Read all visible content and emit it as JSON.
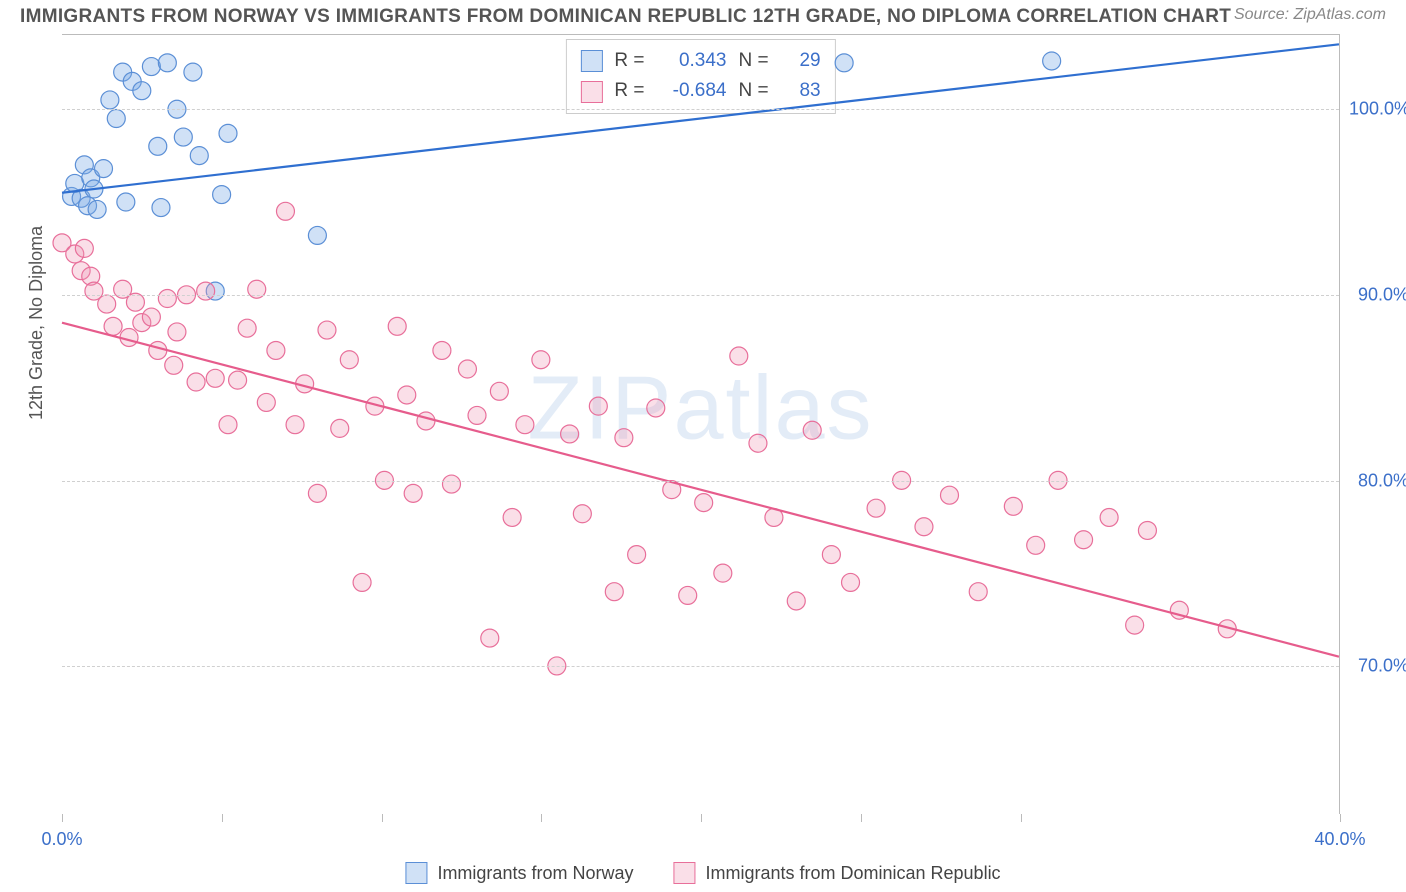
{
  "title": "IMMIGRANTS FROM NORWAY VS IMMIGRANTS FROM DOMINICAN REPUBLIC 12TH GRADE, NO DIPLOMA CORRELATION CHART",
  "source_label": "Source: ZipAtlas.com",
  "watermark": "ZIPatlas",
  "y_axis_title": "12th Grade, No Diploma",
  "chart": {
    "type": "scatter",
    "background_color": "#ffffff",
    "grid_color": "#d0d0d0",
    "border_color": "#bbbbbb",
    "xlim": [
      0,
      40
    ],
    "ylim": [
      62,
      104
    ],
    "x_ticks": [
      0,
      5,
      10,
      15,
      20,
      25,
      30,
      40
    ],
    "x_tick_labels": {
      "0": "0.0%",
      "40": "40.0%"
    },
    "y_ticks": [
      70,
      80,
      90,
      100
    ],
    "y_tick_labels": {
      "70": "70.0%",
      "80": "80.0%",
      "90": "90.0%",
      "100": "100.0%"
    },
    "tick_label_color": "#3b6fc9",
    "tick_label_fontsize": 18,
    "marker_radius": 9,
    "marker_stroke_width": 1.2,
    "line_width": 2.2,
    "series": [
      {
        "key": "norway",
        "label": "Immigrants from Norway",
        "color_fill": "rgba(120,170,230,0.35)",
        "color_stroke": "#5b8fd6",
        "line_color": "#2f6fd0",
        "R": "0.343",
        "N": "29",
        "trend": {
          "x1": 0,
          "y1": 95.5,
          "x2": 40,
          "y2": 103.5
        },
        "points": [
          [
            0.3,
            95.3
          ],
          [
            0.4,
            96.0
          ],
          [
            0.6,
            95.2
          ],
          [
            0.7,
            97.0
          ],
          [
            0.8,
            94.8
          ],
          [
            0.9,
            96.3
          ],
          [
            1.0,
            95.7
          ],
          [
            1.1,
            94.6
          ],
          [
            1.3,
            96.8
          ],
          [
            1.5,
            100.5
          ],
          [
            1.7,
            99.5
          ],
          [
            1.9,
            102.0
          ],
          [
            2.0,
            95.0
          ],
          [
            2.2,
            101.5
          ],
          [
            2.5,
            101.0
          ],
          [
            2.8,
            102.3
          ],
          [
            3.0,
            98.0
          ],
          [
            3.3,
            102.5
          ],
          [
            3.1,
            94.7
          ],
          [
            3.6,
            100.0
          ],
          [
            3.8,
            98.5
          ],
          [
            4.1,
            102.0
          ],
          [
            4.3,
            97.5
          ],
          [
            4.8,
            90.2
          ],
          [
            5.0,
            95.4
          ],
          [
            5.2,
            98.7
          ],
          [
            8.0,
            93.2
          ],
          [
            24.5,
            102.5
          ],
          [
            31.0,
            102.6
          ]
        ]
      },
      {
        "key": "dominican",
        "label": "Immigrants from Dominican Republic",
        "color_fill": "rgba(240,150,180,0.30)",
        "color_stroke": "#e86f9a",
        "line_color": "#e65c8c",
        "R": "-0.684",
        "N": "83",
        "trend": {
          "x1": 0,
          "y1": 88.5,
          "x2": 40,
          "y2": 70.5
        },
        "points": [
          [
            0.0,
            92.8
          ],
          [
            0.4,
            92.2
          ],
          [
            0.6,
            91.3
          ],
          [
            0.7,
            92.5
          ],
          [
            0.9,
            91.0
          ],
          [
            1.0,
            90.2
          ],
          [
            1.4,
            89.5
          ],
          [
            1.6,
            88.3
          ],
          [
            1.9,
            90.3
          ],
          [
            2.1,
            87.7
          ],
          [
            2.3,
            89.6
          ],
          [
            2.5,
            88.5
          ],
          [
            2.8,
            88.8
          ],
          [
            3.0,
            87.0
          ],
          [
            3.3,
            89.8
          ],
          [
            3.5,
            86.2
          ],
          [
            3.6,
            88.0
          ],
          [
            3.9,
            90.0
          ],
          [
            4.2,
            85.3
          ],
          [
            4.5,
            90.2
          ],
          [
            4.8,
            85.5
          ],
          [
            5.2,
            83.0
          ],
          [
            5.5,
            85.4
          ],
          [
            5.8,
            88.2
          ],
          [
            6.1,
            90.3
          ],
          [
            6.4,
            84.2
          ],
          [
            6.7,
            87.0
          ],
          [
            7.0,
            94.5
          ],
          [
            7.3,
            83.0
          ],
          [
            7.6,
            85.2
          ],
          [
            8.0,
            79.3
          ],
          [
            8.3,
            88.1
          ],
          [
            8.7,
            82.8
          ],
          [
            9.0,
            86.5
          ],
          [
            9.4,
            74.5
          ],
          [
            9.8,
            84.0
          ],
          [
            10.1,
            80.0
          ],
          [
            10.5,
            88.3
          ],
          [
            10.8,
            84.6
          ],
          [
            11.0,
            79.3
          ],
          [
            11.4,
            83.2
          ],
          [
            11.9,
            87.0
          ],
          [
            12.2,
            79.8
          ],
          [
            12.7,
            86.0
          ],
          [
            13.0,
            83.5
          ],
          [
            13.4,
            71.5
          ],
          [
            13.7,
            84.8
          ],
          [
            14.1,
            78.0
          ],
          [
            14.5,
            83.0
          ],
          [
            15.0,
            86.5
          ],
          [
            15.5,
            70.0
          ],
          [
            15.9,
            82.5
          ],
          [
            16.3,
            78.2
          ],
          [
            16.8,
            84.0
          ],
          [
            17.3,
            74.0
          ],
          [
            17.6,
            82.3
          ],
          [
            18.0,
            76.0
          ],
          [
            18.6,
            83.9
          ],
          [
            19.1,
            79.5
          ],
          [
            19.6,
            73.8
          ],
          [
            20.1,
            78.8
          ],
          [
            20.7,
            75.0
          ],
          [
            21.2,
            86.7
          ],
          [
            21.8,
            82.0
          ],
          [
            22.3,
            78.0
          ],
          [
            23.0,
            73.5
          ],
          [
            23.5,
            82.7
          ],
          [
            24.1,
            76.0
          ],
          [
            24.7,
            74.5
          ],
          [
            25.5,
            78.5
          ],
          [
            26.3,
            80.0
          ],
          [
            27.0,
            77.5
          ],
          [
            27.8,
            79.2
          ],
          [
            28.7,
            74.0
          ],
          [
            29.8,
            78.6
          ],
          [
            30.5,
            76.5
          ],
          [
            31.2,
            80.0
          ],
          [
            32.0,
            76.8
          ],
          [
            32.8,
            78.0
          ],
          [
            33.6,
            72.2
          ],
          [
            35.0,
            73.0
          ],
          [
            34.0,
            77.3
          ],
          [
            36.5,
            72.0
          ]
        ]
      }
    ]
  },
  "legend_box": {
    "r_label": "R =",
    "n_label": "N ="
  },
  "bottom_legend_labels": [
    "Immigrants from Norway",
    "Immigrants from Dominican Republic"
  ]
}
